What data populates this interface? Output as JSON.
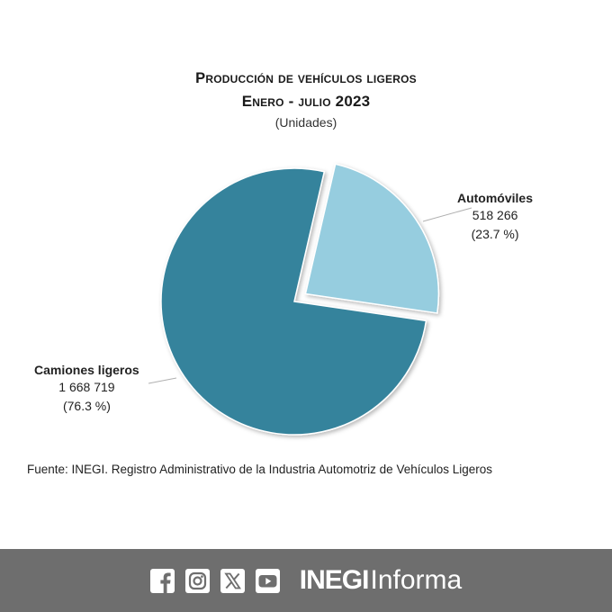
{
  "chart_data": {
    "type": "pie",
    "title_line1": "Producción de vehículos ligeros",
    "title_line2": "Enero - julio 2023",
    "subtitle": "(Unidades)",
    "slices": [
      {
        "label": "Automóviles",
        "value": 518266,
        "value_text": "518 266",
        "percent_text": "(23.7 %)",
        "color": "#96cddf",
        "exploded": true
      },
      {
        "label": "Camiones ligeros",
        "value": 1668719,
        "value_text": "1 668 719",
        "percent_text": "(76.3 %)",
        "color": "#35839c",
        "exploded": false
      }
    ]
  },
  "source": "Fuente: INEGI. Registro Administrativo de la Industria Automotriz de Vehículos Ligeros",
  "footer": {
    "background": "#6e6e6e",
    "icons": [
      "facebook-icon",
      "instagram-icon",
      "x-icon",
      "youtube-icon"
    ],
    "brand_bold": "INEGI",
    "brand_light": "Informa"
  }
}
